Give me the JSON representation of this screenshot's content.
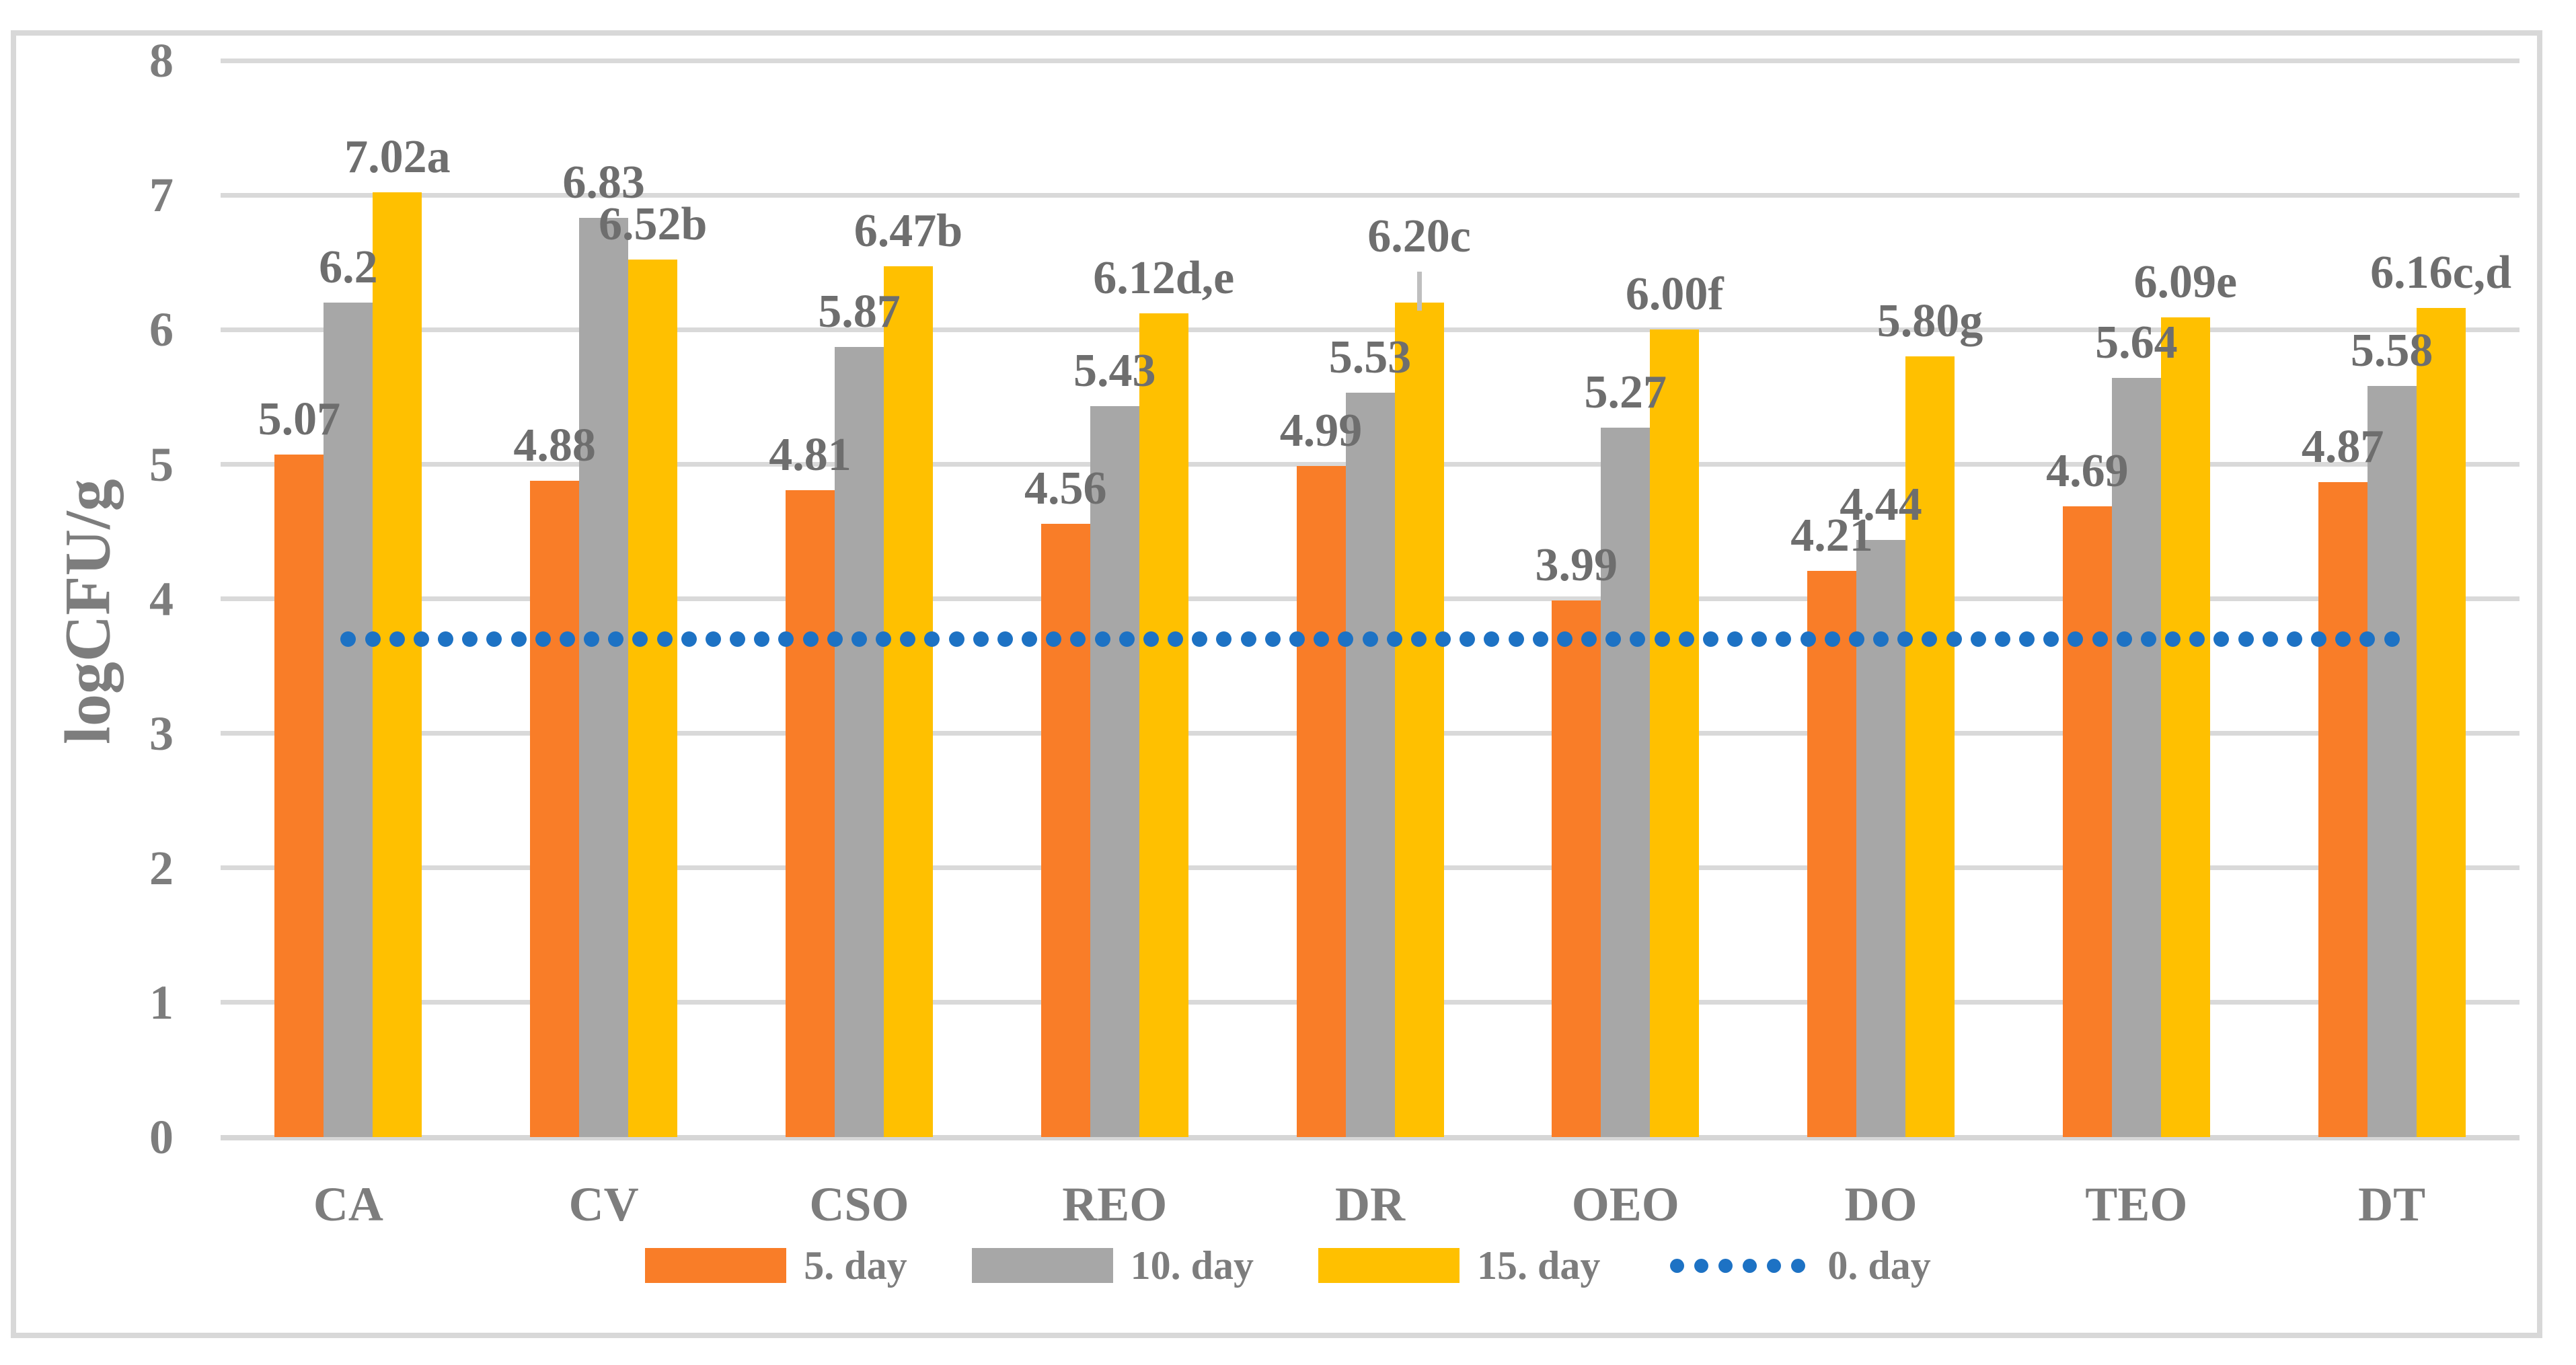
{
  "chart_data": {
    "type": "bar",
    "title": "",
    "xlabel": "",
    "ylabel": "logCFU/g",
    "ylim": [
      0,
      8
    ],
    "yticks": [
      "0",
      "1",
      "2",
      "3",
      "4",
      "5",
      "6",
      "7",
      "8"
    ],
    "grid": "horizontal",
    "legend_position": "bottom",
    "categories": [
      "CA",
      "CV",
      "CSO",
      "REO",
      "DR",
      "OEO",
      "DO",
      "TEO",
      "DT"
    ],
    "series": [
      {
        "name": "5. day",
        "color": "#f97d28",
        "values": [
          5.07,
          4.88,
          4.81,
          4.56,
          4.99,
          3.99,
          4.21,
          4.69,
          4.87
        ],
        "labels": [
          "5.07",
          "4.88",
          "4.81",
          "4.56",
          "4.99",
          "3.99",
          "4.21",
          "4.69",
          "4.87"
        ]
      },
      {
        "name": "10. day",
        "color": "#a7a7a7",
        "values": [
          6.2,
          6.83,
          5.87,
          5.43,
          5.53,
          5.27,
          4.44,
          5.64,
          5.58
        ],
        "labels": [
          "6.2",
          "6.83",
          "5.87",
          "5.43",
          "5.53",
          "5.27",
          "4.44",
          "5.64",
          "5.58"
        ]
      },
      {
        "name": "15. day",
        "color": "#ffc000",
        "values": [
          7.02,
          6.52,
          6.47,
          6.12,
          6.2,
          6.0,
          5.8,
          6.09,
          6.16
        ],
        "labels": [
          "7.02a",
          "6.52b",
          "6.47b",
          "6.12d,e",
          "6.20c",
          "6.00f",
          "5.80g",
          "6.09e",
          "6.16c,d"
        ]
      }
    ],
    "line_series": {
      "name": "0. day",
      "color": "#1d72c4",
      "style": "dotted",
      "value": 3.7
    },
    "error_bars": [
      {
        "series": "15. day",
        "category": "DR",
        "top_value": 6.43
      }
    ],
    "style_colors": {
      "gridline": "#d9d9d9",
      "axis_text": "#7d7d7d",
      "data_label_text": "#6e6e6e",
      "error_bar": "#bfbfbf",
      "chart_border": "#d8d8d8"
    }
  }
}
